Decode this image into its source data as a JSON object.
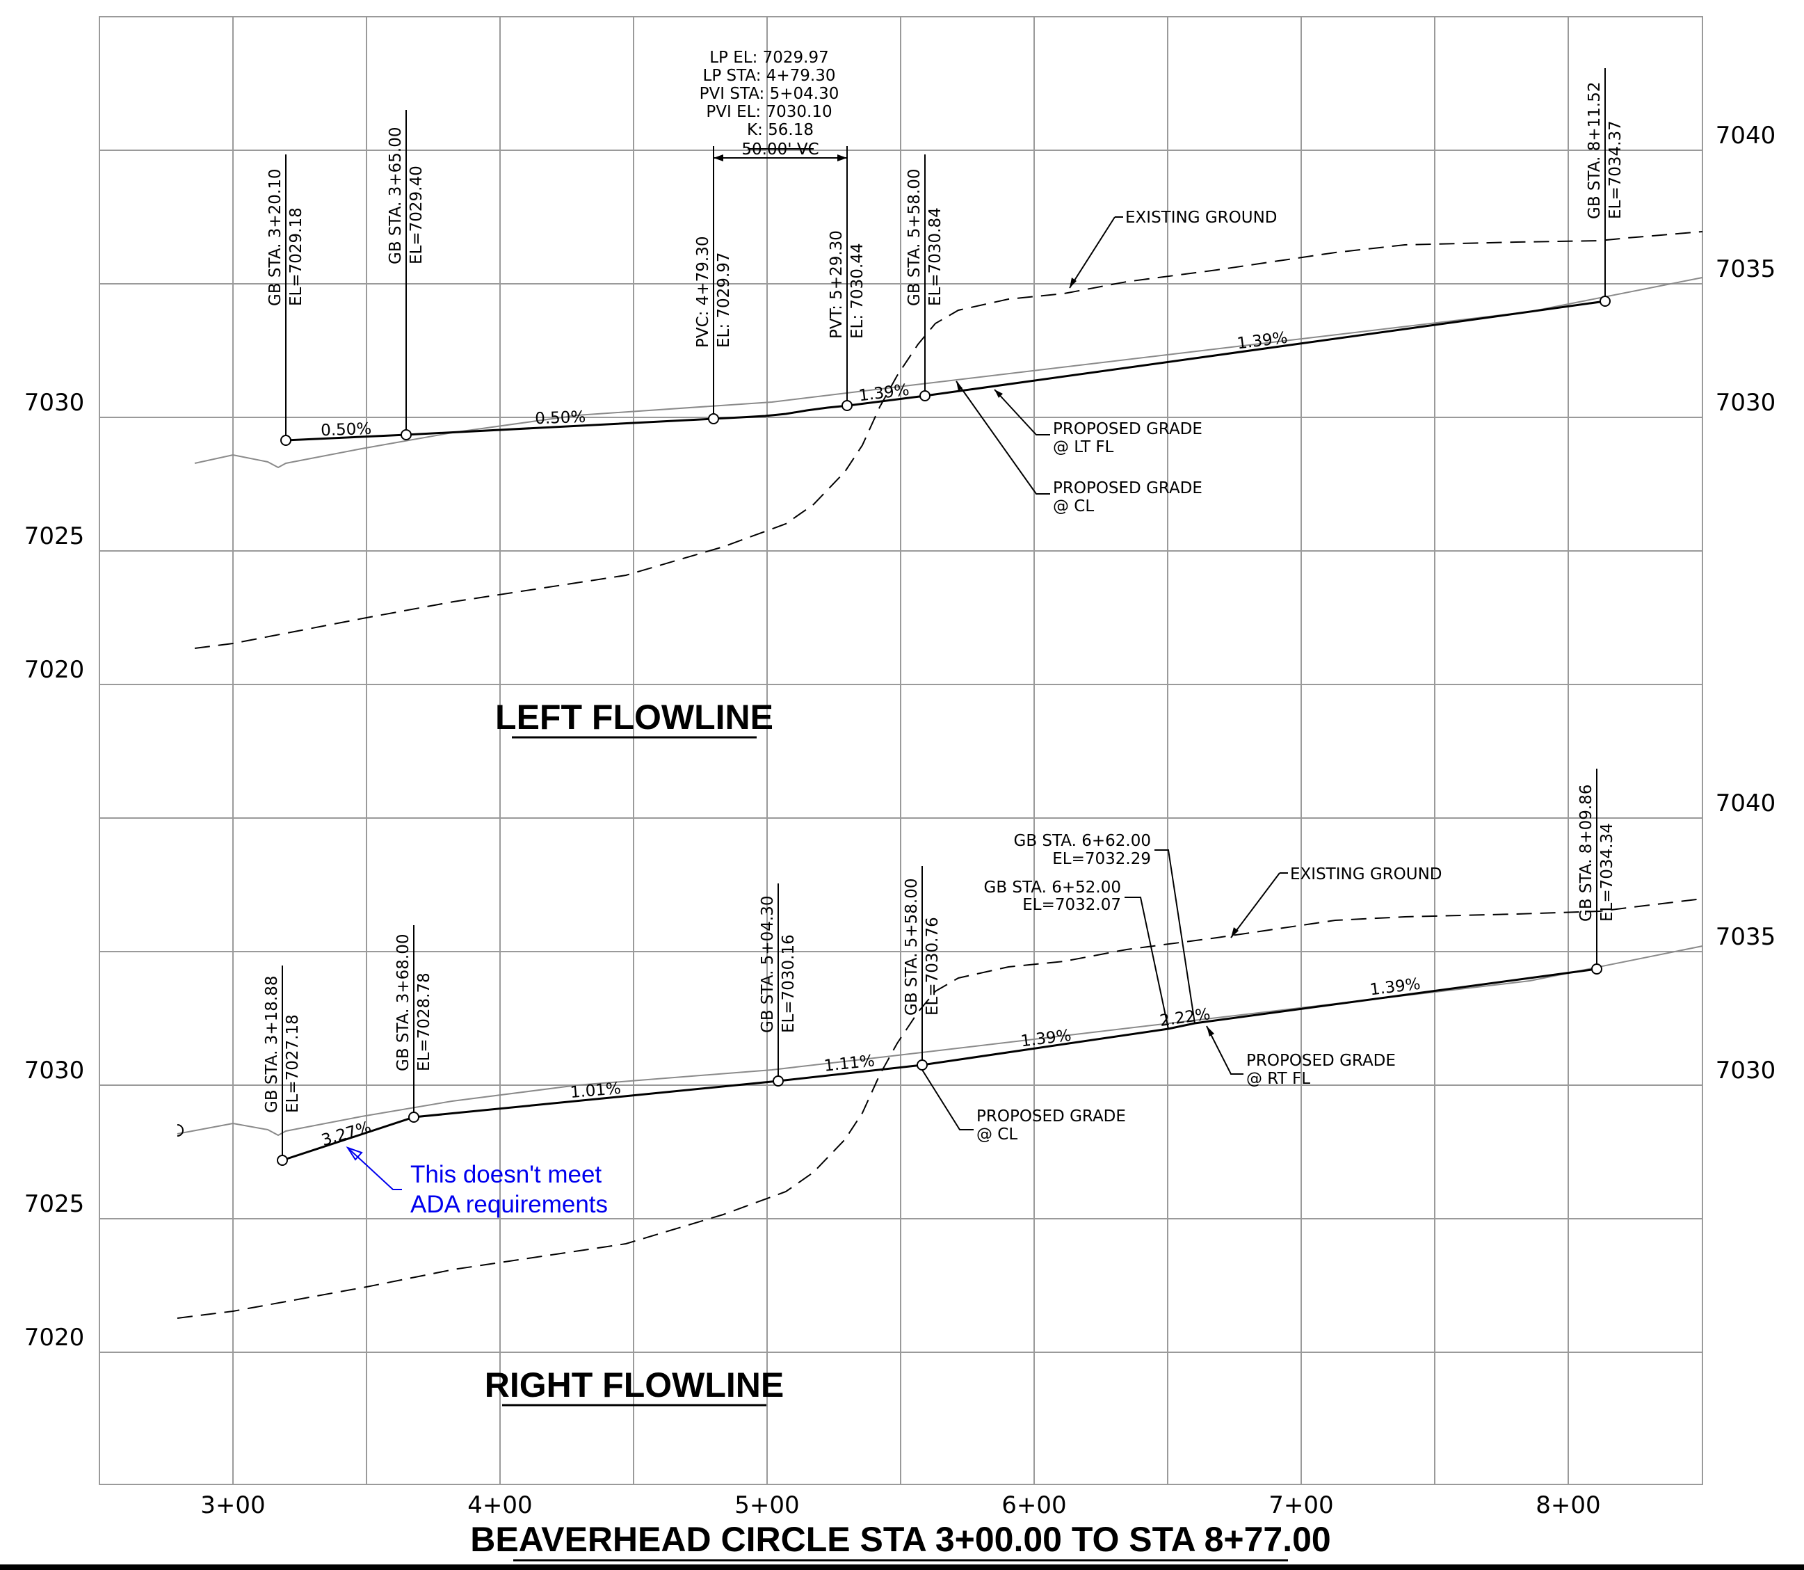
{
  "sheet": {
    "main_title": "BEAVERHEAD CIRCLE  STA 3+00.00 TO STA 8+77.00",
    "station_labels": [
      "3+00",
      "4+00",
      "5+00",
      "6+00",
      "7+00",
      "8+00"
    ]
  },
  "left": {
    "title": "LEFT FLOWLINE",
    "elev_left": [
      "7030",
      "7025",
      "7020"
    ],
    "elev_right": [
      "7040",
      "7035",
      "7030"
    ],
    "vc": {
      "lp_el": "LP EL:  7029.97",
      "lp_sta": "LP STA:  4+79.30",
      "pvi_sta": "PVI STA:  5+04.30",
      "pvi_el": "PVI EL:  7030.10",
      "k": "K: 56.18",
      "length": "50.00' VC"
    },
    "callouts": [
      {
        "l1": "GB STA. 3+20.10",
        "l2": "EL=7029.18"
      },
      {
        "l1": "GB STA. 3+65.00",
        "l2": "EL=7029.40"
      },
      {
        "l1": "PVC: 4+79.30",
        "l2": "EL: 7029.97"
      },
      {
        "l1": "PVT: 5+29.30",
        "l2": "EL: 7030.44"
      },
      {
        "l1": "GB STA. 5+58.00",
        "l2": "EL=7030.84"
      },
      {
        "l1": "GB STA. 8+11.52",
        "l2": "EL=7034.37"
      }
    ],
    "grades": [
      "0.50%",
      "0.50%",
      "1.39%",
      "1.39%"
    ],
    "existing_ground": "EXISTING GROUND",
    "pg_lt_fl": [
      "PROPOSED GRADE",
      "@ LT FL"
    ],
    "pg_cl": [
      "PROPOSED GRADE",
      "@ CL"
    ]
  },
  "right": {
    "title": "RIGHT FLOWLINE",
    "elev_left": [
      "7030",
      "7025",
      "7020"
    ],
    "elev_right": [
      "7040",
      "7035",
      "7030"
    ],
    "callouts": [
      {
        "l1": "GB STA. 3+18.88",
        "l2": "EL=7027.18"
      },
      {
        "l1": "GB STA. 3+68.00",
        "l2": "EL=7028.78"
      },
      {
        "l1": "GB STA. 5+04.30",
        "l2": "EL=7030.16"
      },
      {
        "l1": "GB STA. 5+58.00",
        "l2": "EL=7030.76"
      },
      {
        "l1": "GB STA. 8+09.86",
        "l2": "EL=7034.34"
      }
    ],
    "callout_662": [
      "GB STA. 6+62.00",
      "EL=7032.29"
    ],
    "callout_652": [
      "GB STA. 6+52.00",
      "EL=7032.07"
    ],
    "grades": [
      "3.27%",
      "1.01%",
      "1.11%",
      "1.39%",
      "2.22%",
      "1.39%"
    ],
    "existing_ground": "EXISTING GROUND",
    "pg_rt_fl": [
      "PROPOSED GRADE",
      "@ RT FL"
    ],
    "pg_cl": [
      "PROPOSED GRADE",
      "@ CL"
    ],
    "ada_note": [
      "This doesn't meet",
      "ADA requirements"
    ]
  }
}
